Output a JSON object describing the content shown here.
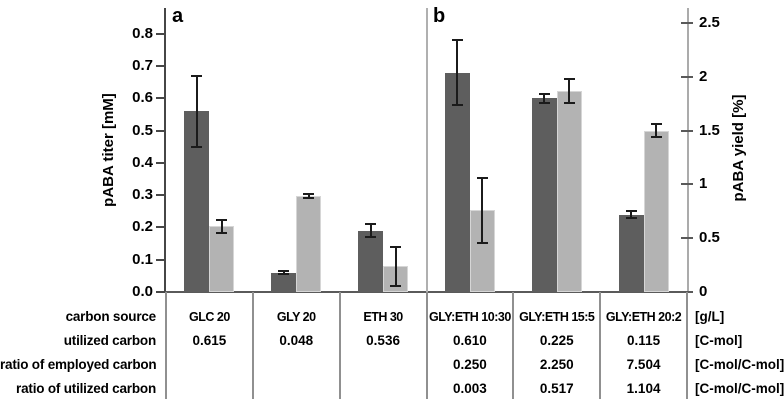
{
  "figure": {
    "panel_a_label": "a",
    "panel_b_label": "b",
    "background": "#ffffff"
  },
  "chart_data": {
    "type": "bar",
    "title": "",
    "grid": false,
    "legend": "none",
    "panels": [
      {
        "label": "a",
        "categories": [
          "GLC 20",
          "GLY 20",
          "ETH 30"
        ]
      },
      {
        "label": "b",
        "categories": [
          "GLY:ETH 10:30",
          "GLY:ETH 15:5",
          "GLY:ETH 20:2"
        ]
      }
    ],
    "categories": [
      "GLC 20",
      "GLY 20",
      "ETH 30",
      "GLY:ETH 10:30",
      "GLY:ETH 15:5",
      "GLY:ETH 20:2"
    ],
    "series": [
      {
        "name": "pABA titer",
        "unit": "mM",
        "axis": "left",
        "color": "#5e5e5e",
        "values": [
          0.56,
          0.06,
          0.19,
          0.68,
          0.6,
          0.24
        ],
        "errors": [
          0.11,
          0.005,
          0.02,
          0.1,
          0.015,
          0.01
        ]
      },
      {
        "name": "pABA yield",
        "unit": "%",
        "axis": "right",
        "color": "#b3b3b3",
        "values": [
          0.61,
          0.89,
          0.24,
          0.76,
          1.87,
          1.5
        ],
        "errors": [
          0.06,
          0.02,
          0.18,
          0.3,
          0.11,
          0.06
        ]
      }
    ],
    "left_axis": {
      "title": "pABA titer [mM]",
      "tick_values": [
        0.0,
        0.1,
        0.2,
        0.3,
        0.4,
        0.5,
        0.6,
        0.7,
        0.8
      ],
      "tick_labels": [
        "0.0",
        "0.1",
        "0.2",
        "0.3",
        "0.4",
        "0.5",
        "0.6",
        "0.7",
        "0.8"
      ],
      "range": [
        0,
        0.88
      ]
    },
    "right_axis": {
      "title": "pABA yield [%]",
      "tick_values": [
        0,
        0.5,
        1,
        1.5,
        2,
        2.5
      ],
      "tick_labels": [
        "0",
        "0.5",
        "1",
        "1.5",
        "2",
        "2.5"
      ],
      "range": [
        0,
        2.64
      ]
    }
  },
  "table": {
    "row_labels": [
      "carbon source",
      "utilized carbon",
      "ratio of employed carbon",
      "ratio of utilized carbon"
    ],
    "rows": [
      [
        "GLC 20",
        "GLY 20",
        "ETH 30",
        "GLY:ETH 10:30",
        "GLY:ETH 15:5",
        "GLY:ETH 20:2"
      ],
      [
        "0.615",
        "0.048",
        "0.536",
        "0.610",
        "0.225",
        "0.115"
      ],
      [
        "",
        "",
        "",
        "0.250",
        "2.250",
        "7.504"
      ],
      [
        "",
        "",
        "",
        "0.003",
        "0.517",
        "1.104"
      ]
    ],
    "units": [
      "[g/L]",
      "[C-mol]",
      "[C-mol/C-mol]",
      "[C-mol/C-mol]"
    ]
  },
  "colors": {
    "bar_dark": "#5e5e5e",
    "bar_light": "#b3b3b3",
    "axis_dark": "#464646",
    "axis_light": "#ababab",
    "table_border": "#909090",
    "error_bar": "#1b1b1b"
  }
}
